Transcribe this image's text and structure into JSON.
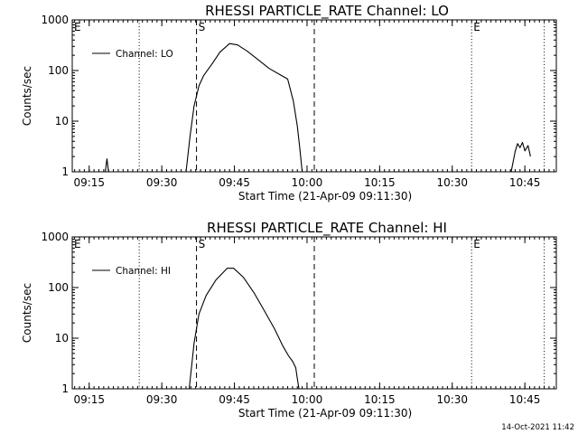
{
  "footer": {
    "timestamp": "14-Oct-2021 11:42"
  },
  "chart_data": [
    {
      "type": "line",
      "title": "RHESSI PARTICLE_RATE Channel: LO",
      "xlabel": "Start Time (21-Apr-09 09:11:30)",
      "ylabel": "Counts/sec",
      "y_scale": "log",
      "ylim": [
        1,
        1000
      ],
      "y_ticks": [
        {
          "value": 1,
          "label": "1"
        },
        {
          "value": 10,
          "label": "10"
        },
        {
          "value": 100,
          "label": "100"
        },
        {
          "value": 1000,
          "label": "1000"
        }
      ],
      "xlim": [
        "09:11:30",
        "10:51:30"
      ],
      "x_ticks": [
        {
          "time": "09:15",
          "label": "09:15"
        },
        {
          "time": "09:30",
          "label": "09:30"
        },
        {
          "time": "09:45",
          "label": "09:45"
        },
        {
          "time": "10:00",
          "label": "10:00"
        },
        {
          "time": "10:15",
          "label": "10:15"
        },
        {
          "time": "10:30",
          "label": "10:30"
        },
        {
          "time": "10:45",
          "label": "10:45"
        }
      ],
      "legend": {
        "entry": "Channel: LO",
        "placement": "top-left"
      },
      "markers": [
        {
          "time": "09:11:30",
          "style": "dotted",
          "label": "E"
        },
        {
          "time": "09:25:20",
          "style": "dotted",
          "label": ""
        },
        {
          "time": "09:37:10",
          "style": "dashed",
          "label": "S"
        },
        {
          "time": "10:01:30",
          "style": "dashed",
          "label": ""
        },
        {
          "time": "10:34:00",
          "style": "dotted",
          "label": "E"
        },
        {
          "time": "10:49:00",
          "style": "dotted",
          "label": ""
        }
      ],
      "series": [
        {
          "name": "Channel: LO",
          "segments": [
            [
              {
                "x": "09:18:20",
                "y": 1
              },
              {
                "x": "09:18:40",
                "y": 1.8
              },
              {
                "x": "09:19:00",
                "y": 1
              }
            ],
            [
              {
                "x": "09:35:00",
                "y": 1
              },
              {
                "x": "09:35:50",
                "y": 5
              },
              {
                "x": "09:36:40",
                "y": 20
              },
              {
                "x": "09:37:40",
                "y": 50
              },
              {
                "x": "09:38:40",
                "y": 80
              },
              {
                "x": "09:40:30",
                "y": 140
              },
              {
                "x": "09:42:00",
                "y": 230
              },
              {
                "x": "09:44:00",
                "y": 340
              },
              {
                "x": "09:45:40",
                "y": 320
              },
              {
                "x": "09:47:40",
                "y": 240
              },
              {
                "x": "09:49:40",
                "y": 170
              },
              {
                "x": "09:52:10",
                "y": 110
              },
              {
                "x": "09:54:40",
                "y": 80
              },
              {
                "x": "09:56:00",
                "y": 68
              },
              {
                "x": "09:57:10",
                "y": 25
              },
              {
                "x": "09:58:00",
                "y": 8
              },
              {
                "x": "09:58:30",
                "y": 3
              },
              {
                "x": "09:59:00",
                "y": 1
              }
            ],
            [
              {
                "x": "10:42:10",
                "y": 1
              },
              {
                "x": "10:43:00",
                "y": 2.5
              },
              {
                "x": "10:43:30",
                "y": 3.6
              },
              {
                "x": "10:44:00",
                "y": 3.0
              },
              {
                "x": "10:44:30",
                "y": 3.8
              },
              {
                "x": "10:45:00",
                "y": 2.6
              },
              {
                "x": "10:45:40",
                "y": 3.3
              },
              {
                "x": "10:46:10",
                "y": 2.0
              }
            ]
          ]
        }
      ]
    },
    {
      "type": "line",
      "title": "RHESSI PARTICLE_RATE Channel: HI",
      "xlabel": "Start Time (21-Apr-09 09:11:30)",
      "ylabel": "Counts/sec",
      "y_scale": "log",
      "ylim": [
        1,
        1000
      ],
      "y_ticks": [
        {
          "value": 1,
          "label": "1"
        },
        {
          "value": 10,
          "label": "10"
        },
        {
          "value": 100,
          "label": "100"
        },
        {
          "value": 1000,
          "label": "1000"
        }
      ],
      "xlim": [
        "09:11:30",
        "10:51:30"
      ],
      "x_ticks": [
        {
          "time": "09:15",
          "label": "09:15"
        },
        {
          "time": "09:30",
          "label": "09:30"
        },
        {
          "time": "09:45",
          "label": "09:45"
        },
        {
          "time": "10:00",
          "label": "10:00"
        },
        {
          "time": "10:15",
          "label": "10:15"
        },
        {
          "time": "10:30",
          "label": "10:30"
        },
        {
          "time": "10:45",
          "label": "10:45"
        }
      ],
      "legend": {
        "entry": "Channel: HI",
        "placement": "top-left"
      },
      "markers": [
        {
          "time": "09:11:30",
          "style": "dotted",
          "label": "E"
        },
        {
          "time": "09:25:20",
          "style": "dotted",
          "label": ""
        },
        {
          "time": "09:37:10",
          "style": "dashed",
          "label": "S"
        },
        {
          "time": "10:01:30",
          "style": "dashed",
          "label": ""
        },
        {
          "time": "10:34:00",
          "style": "dotted",
          "label": "E"
        },
        {
          "time": "10:49:00",
          "style": "dotted",
          "label": ""
        }
      ],
      "series": [
        {
          "name": "Channel: HI",
          "segments": [
            [
              {
                "x": "09:35:40",
                "y": 1
              },
              {
                "x": "09:36:40",
                "y": 8
              },
              {
                "x": "09:37:40",
                "y": 30
              },
              {
                "x": "09:39:10",
                "y": 70
              },
              {
                "x": "09:41:10",
                "y": 140
              },
              {
                "x": "09:43:30",
                "y": 240
              },
              {
                "x": "09:44:50",
                "y": 240
              },
              {
                "x": "09:46:50",
                "y": 160
              },
              {
                "x": "09:49:00",
                "y": 80
              },
              {
                "x": "09:51:10",
                "y": 35
              },
              {
                "x": "09:53:20",
                "y": 15
              },
              {
                "x": "09:55:00",
                "y": 7
              },
              {
                "x": "09:56:10",
                "y": 4.5
              },
              {
                "x": "09:57:00",
                "y": 3.5
              },
              {
                "x": "09:57:40",
                "y": 2.6
              },
              {
                "x": "09:58:00",
                "y": 1.6
              },
              {
                "x": "09:58:20",
                "y": 1
              }
            ]
          ]
        }
      ]
    }
  ]
}
